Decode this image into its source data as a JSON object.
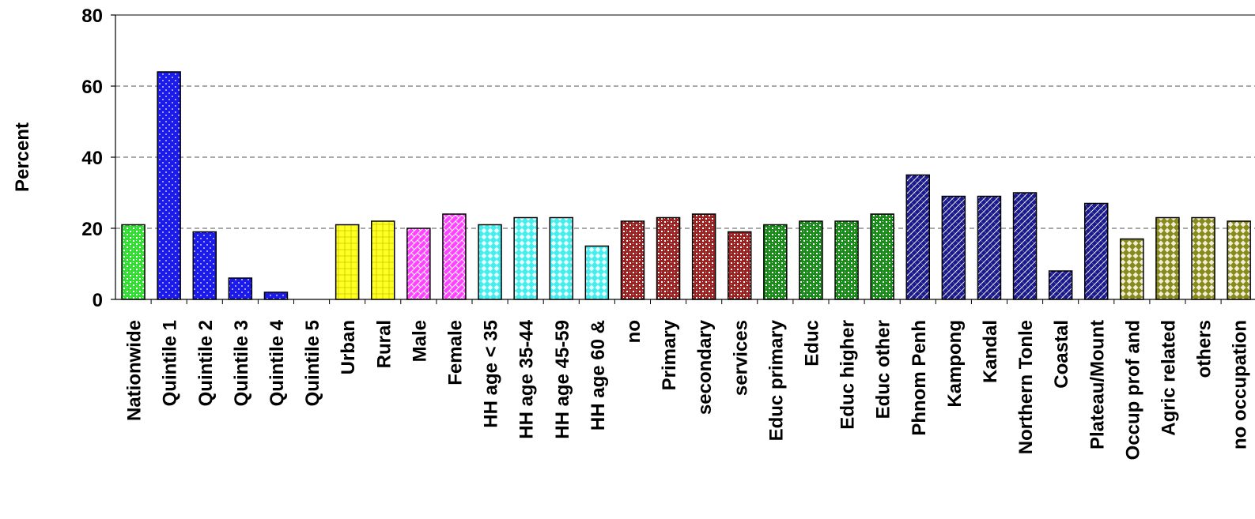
{
  "chart_data": {
    "type": "bar",
    "title": "",
    "xlabel": "",
    "ylabel": "Percent",
    "ylim": [
      0,
      80
    ],
    "yticks": [
      0,
      20,
      40,
      60,
      80
    ],
    "grid": "horizontal dashed",
    "legend": "none",
    "categories": [
      "Nationwide",
      "Quintile 1",
      "Quintile 2",
      "Quintile 3",
      "Quintile 4",
      "Quintile 5",
      "Urban",
      "Rural",
      "Male",
      "Female",
      "HH age < 35",
      "HH age 35-44",
      "HH age 45-59",
      "HH age 60 &",
      "no",
      "Primary",
      "secondary",
      "services",
      "Educ primary",
      "Educ",
      "Educ higher",
      "Educ other",
      "Phnom Penh",
      "Kampong",
      "Kandal",
      "Northern Tonle",
      "Coastal",
      "Plateau/Mount",
      "Occup prof and",
      "Agric related",
      "others",
      "no occupation"
    ],
    "values": [
      21,
      64,
      19,
      6,
      2,
      0,
      21,
      22,
      20,
      24,
      21,
      23,
      23,
      15,
      22,
      23,
      24,
      19,
      21,
      22,
      22,
      24,
      35,
      29,
      29,
      30,
      8,
      27,
      17,
      23,
      23,
      22
    ],
    "colors": [
      "#33dd33",
      "#1a1aee",
      "#1a1aee",
      "#1a1aee",
      "#1a1aee",
      "#1a1aee",
      "#ffff22",
      "#ffff22",
      "#ff44ff",
      "#ff44ff",
      "#44eeee",
      "#44eeee",
      "#44eeee",
      "#44eeee",
      "#992222",
      "#992222",
      "#992222",
      "#992222",
      "#1a8a1a",
      "#1a8a1a",
      "#1a8a1a",
      "#1a8a1a",
      "#1a1a8c",
      "#1a1a8c",
      "#1a1a8c",
      "#1a1a8c",
      "#1a1a8c",
      "#1a1a8c",
      "#8a8a1a",
      "#8a8a1a",
      "#8a8a1a",
      "#8a8a1a"
    ],
    "patterns": [
      "checker",
      "dots",
      "dots",
      "dots",
      "dots",
      "dots",
      "grid",
      "grid",
      "weave",
      "weave",
      "diamond",
      "diamond",
      "diamond",
      "diamond",
      "checker",
      "checker",
      "checker",
      "checker",
      "checker",
      "checker",
      "checker",
      "checker",
      "diag",
      "diag",
      "diag",
      "diag",
      "diag",
      "diag",
      "diamond",
      "diamond",
      "diamond",
      "diamond"
    ]
  }
}
